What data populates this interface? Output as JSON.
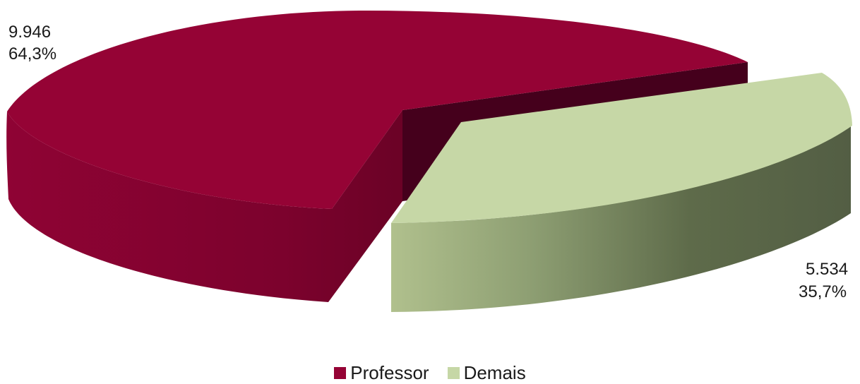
{
  "chart_data": {
    "type": "pie",
    "style": "3d-exploded",
    "slices": [
      {
        "name": "Professor",
        "value": 9946,
        "value_label": "9.946",
        "percent_label": "64,3%",
        "color": "#950335"
      },
      {
        "name": "Demais",
        "value": 5534,
        "value_label": "5.534",
        "percent_label": "35,7%",
        "color": "#c6d7a6"
      }
    ],
    "legend": {
      "placement": "bottom"
    }
  }
}
